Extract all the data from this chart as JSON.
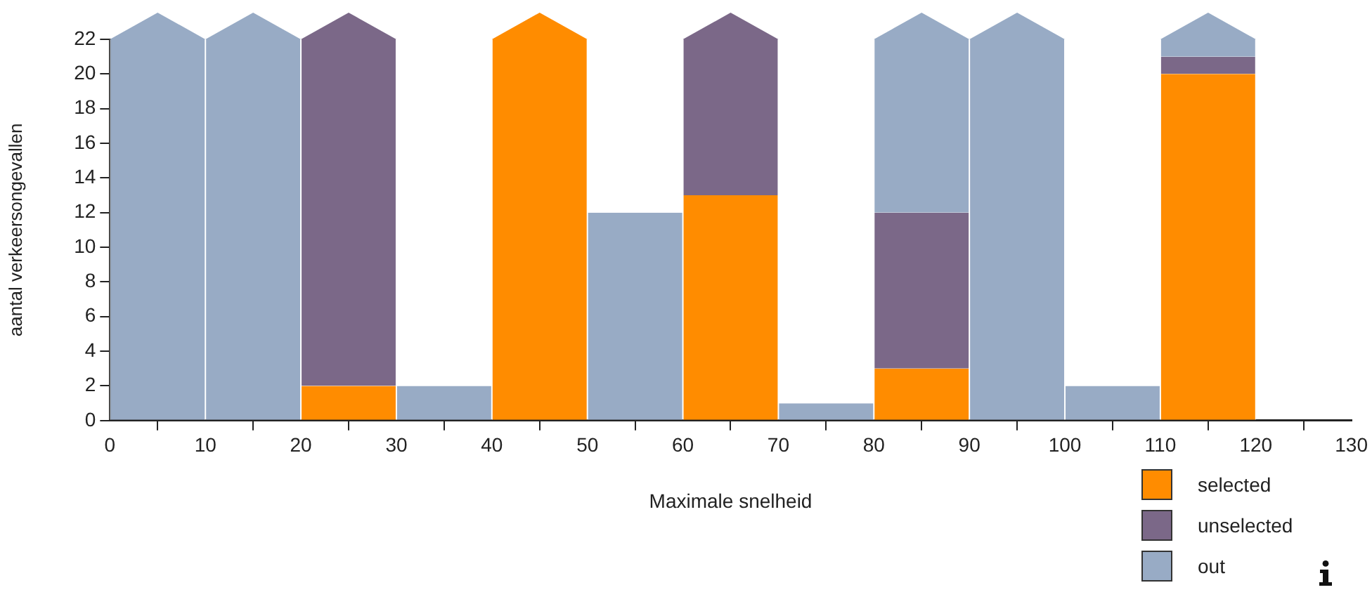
{
  "chart_data": {
    "type": "bar",
    "xlabel": "Maximale snelheid",
    "ylabel": "aantal verkeersongevallen",
    "x": [
      5,
      15,
      25,
      35,
      45,
      55,
      65,
      75,
      85,
      95,
      105,
      115
    ],
    "stacked": true,
    "series": [
      {
        "name": "selected",
        "color": "#ff8c00",
        "values": [
          0,
          0,
          2,
          0,
          22,
          0,
          13,
          0,
          3,
          0,
          0,
          20
        ]
      },
      {
        "name": "unselected",
        "color": "#7b6888",
        "values": [
          0,
          0,
          20,
          0,
          0,
          0,
          9,
          0,
          9,
          0,
          0,
          1
        ]
      },
      {
        "name": "out",
        "color": "#98abc5",
        "values": [
          22,
          22,
          0,
          2,
          0,
          12,
          0,
          1,
          10,
          22,
          2,
          1
        ]
      }
    ],
    "xlim": [
      0,
      130
    ],
    "xticks": [
      0,
      10,
      20,
      30,
      40,
      50,
      60,
      70,
      80,
      90,
      100,
      110,
      120,
      130
    ],
    "ylim": [
      0,
      22
    ],
    "yticks": [
      0,
      2,
      4,
      6,
      8,
      10,
      12,
      14,
      16,
      18,
      20,
      22
    ],
    "grid": false,
    "legend": "bottom right"
  }
}
